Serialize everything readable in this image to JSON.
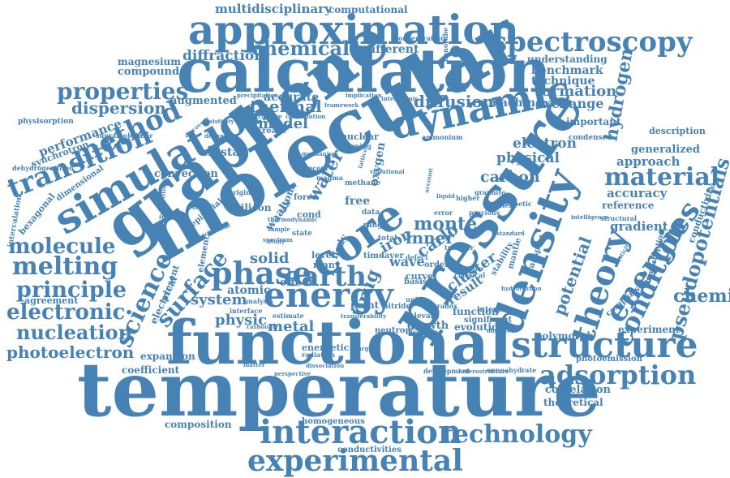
{
  "color": "#4682b4",
  "words": [
    "temperature",
    "functional",
    "molecular",
    "calculation",
    "graphene",
    "pressure",
    "density",
    "approximation",
    "simulation",
    "dynamic",
    "core",
    "spectroscopy",
    "structure",
    "energy",
    "earth",
    "interaction",
    "experimental",
    "theory",
    "energies",
    "condition",
    "material",
    "phase",
    "method",
    "properties",
    "transition",
    "technology",
    "adsorption",
    "chemical",
    "science",
    "surface",
    "potential",
    "pseudopotentials",
    "chemistry",
    "hydrogen",
    "diffraction",
    "melting",
    "molecule",
    "principle",
    "electronic",
    "nucleation",
    "photoelectron",
    "multidisciplinary",
    "computational",
    "magnesium",
    "compound",
    "dispersion",
    "performance",
    "synchrotron",
    "thermal",
    "model",
    "accurate",
    "augmented",
    "diffusion",
    "machine",
    "formation",
    "exchange",
    "technique",
    "benchmark",
    "understanding",
    "different",
    "important",
    "electron",
    "physical",
    "carbon",
    "approach",
    "generalized",
    "accuracy",
    "reference",
    "gradient",
    "description",
    "conductivity",
    "water",
    "monte",
    "carlo",
    "inner",
    "iron",
    "wave",
    "cluster",
    "result",
    "solid",
    "crystal",
    "convection",
    "system",
    "atomic",
    "physic",
    "metal",
    "effect",
    "expansion",
    "coefficient",
    "composition",
    "homogeneous",
    "conductivities",
    "correlation",
    "theoretical",
    "polymorph",
    "photoemission",
    "experiment",
    "agreement",
    "bexagonal",
    "dimensional",
    "intercalation",
    "dehydrogenation",
    "physisorption",
    "supramolecular",
    "epitaxial",
    "silicon",
    "waals",
    "atom",
    "free",
    "cond",
    "level",
    "many",
    "curve",
    "body",
    "point",
    "drug",
    "nitride",
    "growth",
    "evolution",
    "neutron",
    "energetic",
    "radiation",
    "function",
    "significant",
    "interplay",
    "stability",
    "comparison",
    "chemisorption",
    "error",
    "previous",
    "increase",
    "nuclear",
    "learning",
    "ammonium",
    "condensed",
    "higher",
    "oxygen",
    "methane",
    "magma",
    "interatomic",
    "implication",
    "framework",
    "precipitation",
    "dependent",
    "electrical",
    "present",
    "element",
    "time",
    "layer",
    "order",
    "basis",
    "mixture",
    "data",
    "range",
    "force",
    "recent",
    "state",
    "total",
    "estimate",
    "interface",
    "analysis",
    "resistivity",
    "carbonate",
    "dissociation",
    "development",
    "heterostructure",
    "enneahydrate",
    "mantle",
    "transport",
    "magnetic",
    "structural",
    "intelligence",
    "standard",
    "relevant",
    "inclusive",
    "paradox",
    "defect",
    "classical",
    "transfer",
    "ambient",
    "strain",
    "graphite",
    "unit",
    "origin",
    "matter",
    "perspective",
    "hydrocarbon",
    "elasticity",
    "transferability",
    "freezing",
    "mechanical",
    "partitioning",
    "discovery",
    "infrastructure",
    "contribution",
    "mechanism",
    "observed",
    "account",
    "lattice",
    "vibrational",
    "nanotube",
    "concentration",
    "thermodynamic",
    "spectrum",
    "sample",
    "liquid",
    "study",
    "charge",
    "lower",
    "degrees"
  ]
}
